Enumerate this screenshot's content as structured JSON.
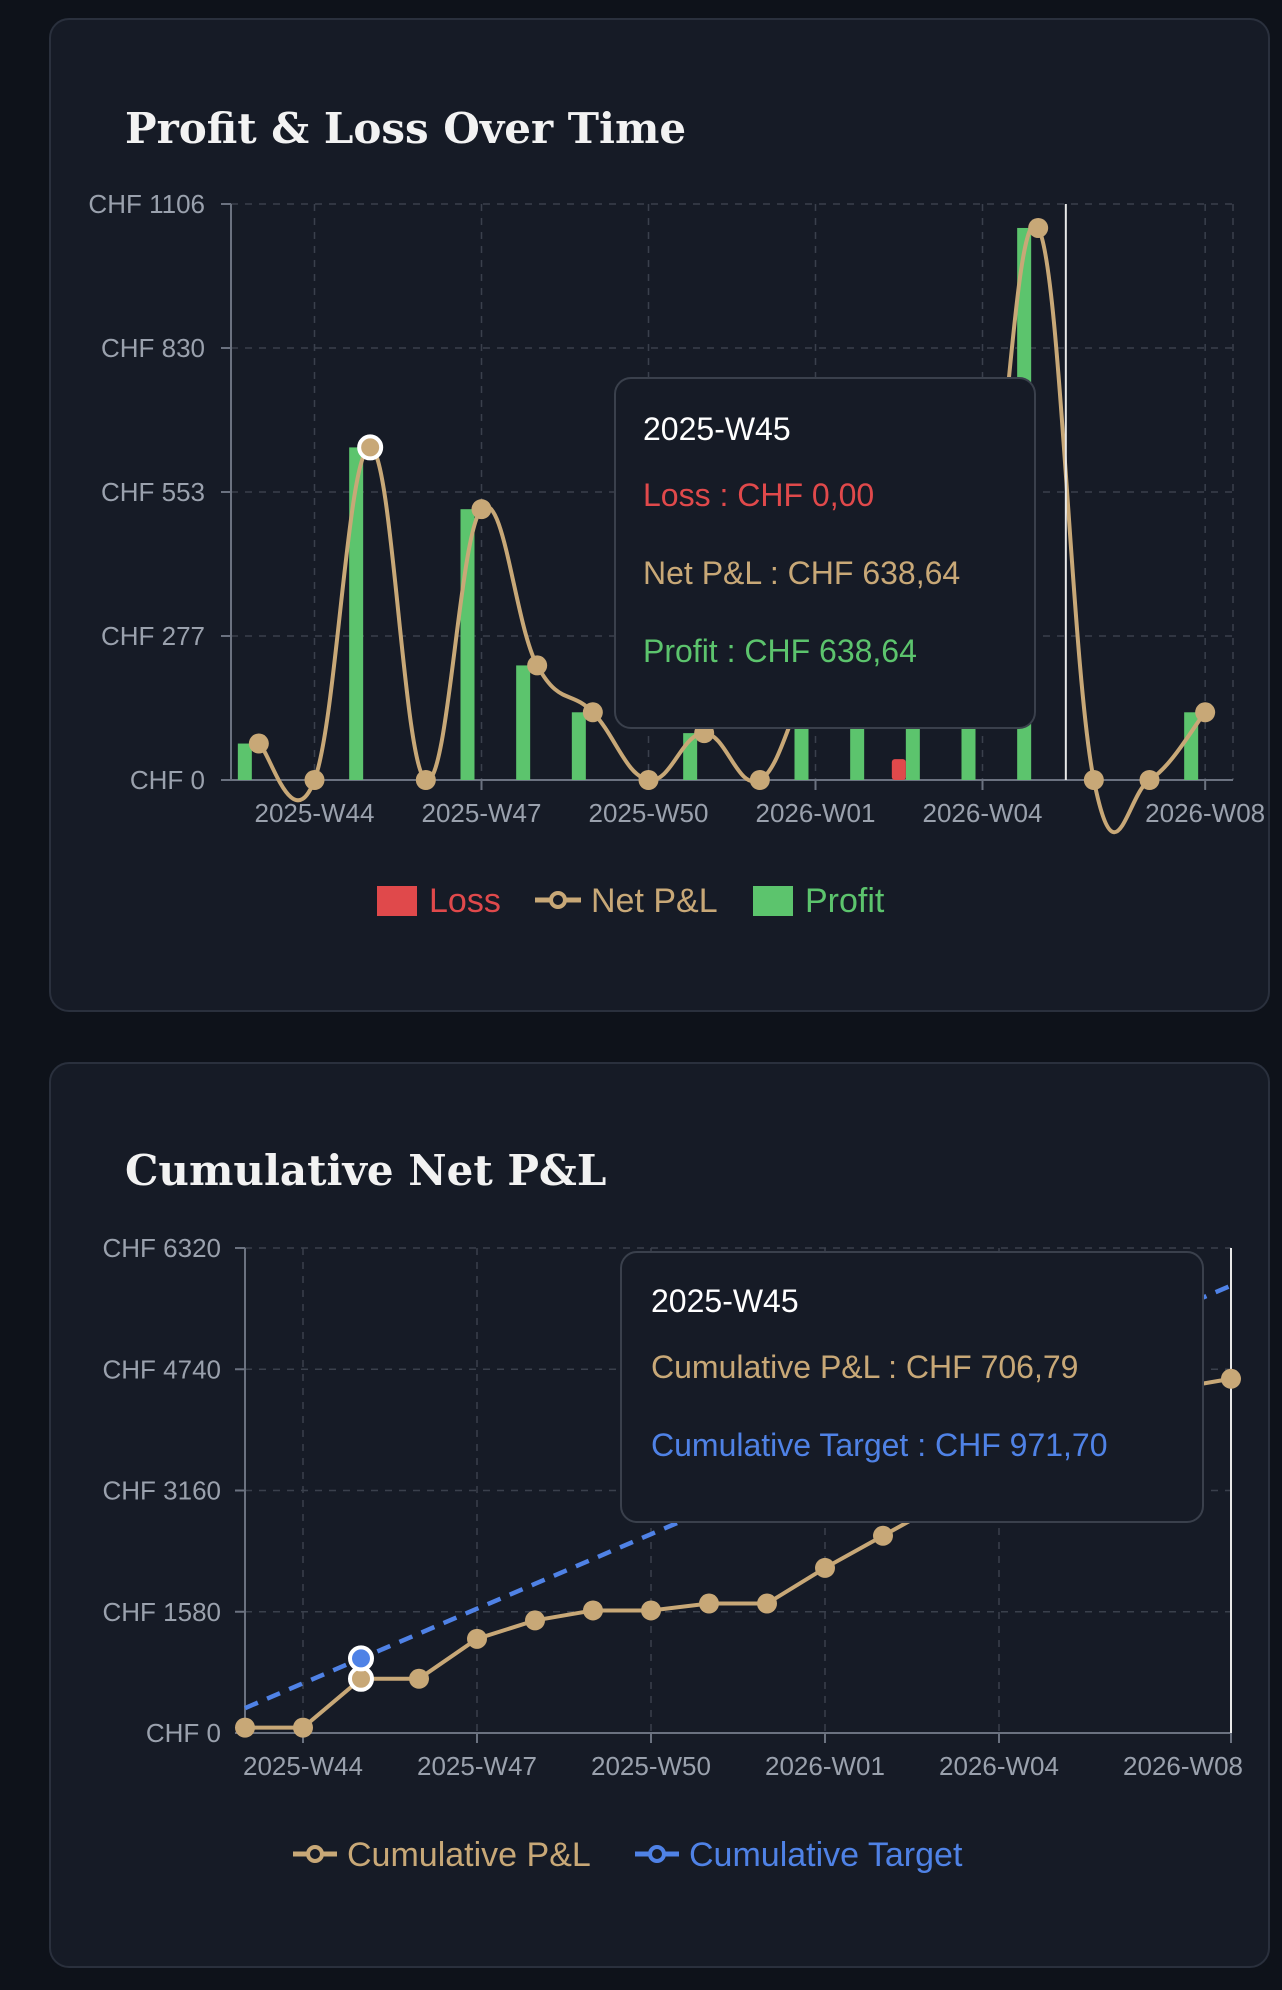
{
  "colors": {
    "loss": "#e0494b",
    "net": "#c8a877",
    "profit": "#5cc46d",
    "target": "#4f82e6"
  },
  "cards": [
    {
      "title": "Profit & Loss Over Time"
    },
    {
      "title": "Cumulative Net P&L"
    }
  ],
  "chart_data": [
    {
      "type": "bar",
      "title": "Profit & Loss Over Time",
      "x": [
        "2025-W43",
        "2025-W44",
        "2025-W45",
        "2025-W46",
        "2025-W47",
        "2025-W48",
        "2025-W49",
        "2025-W50",
        "2025-W51",
        "2025-W52",
        "2026-W01",
        "2026-W02",
        "2026-W03",
        "2026-W04",
        "2026-W05",
        "2026-W06",
        "2026-W07",
        "2026-W08"
      ],
      "xticks": [
        "2025-W44",
        "2025-W47",
        "2025-W50",
        "2026-W01",
        "2026-W04",
        "2026-W08"
      ],
      "yticks": [
        "CHF 0",
        "CHF 277",
        "CHF 553",
        "CHF 830",
        "CHF 1106"
      ],
      "ylim": [
        0,
        1106
      ],
      "series": [
        {
          "name": "Loss",
          "values": [
            0,
            0,
            0,
            0,
            0,
            0,
            0,
            0,
            0,
            0,
            0,
            0,
            -40,
            0,
            0,
            0,
            0,
            0
          ]
        },
        {
          "name": "Net P&L",
          "values": [
            70,
            0,
            638.64,
            0,
            520,
            220,
            130,
            0,
            90,
            0,
            200,
            180,
            140,
            350,
            1060,
            0,
            0,
            130
          ]
        },
        {
          "name": "Profit",
          "values": [
            70,
            0,
            638.64,
            0,
            520,
            220,
            130,
            0,
            90,
            0,
            200,
            180,
            180,
            350,
            1060,
            0,
            0,
            130
          ]
        }
      ],
      "legend": [
        "Loss",
        "Net P&L",
        "Profit"
      ],
      "legend_position": "bottom",
      "grid": true,
      "tooltip": {
        "title": "2025-W45",
        "rows": [
          {
            "label": "Loss : CHF 0,00"
          },
          {
            "label": "Net P&L : CHF 638,64"
          },
          {
            "label": "Profit : CHF 638,64"
          }
        ]
      }
    },
    {
      "type": "line",
      "title": "Cumulative Net P&L",
      "x": [
        "2025-W43",
        "2025-W44",
        "2025-W45",
        "2025-W46",
        "2025-W47",
        "2025-W48",
        "2025-W49",
        "2025-W50",
        "2025-W51",
        "2025-W52",
        "2026-W01",
        "2026-W02",
        "2026-W03",
        "2026-W04",
        "2026-W05",
        "2026-W06",
        "2026-W07",
        "2026-W08"
      ],
      "xticks": [
        "2025-W44",
        "2025-W47",
        "2025-W50",
        "2026-W01",
        "2026-W04",
        "2026-W08"
      ],
      "yticks": [
        "CHF 0",
        "CHF 1580",
        "CHF 3160",
        "CHF 4740",
        "CHF 6320"
      ],
      "ylim": [
        0,
        6320
      ],
      "series": [
        {
          "name": "Cumulative P&L",
          "values": [
            70,
            70,
            706.79,
            706.79,
            1227,
            1467,
            1597,
            1597,
            1687,
            1687,
            2151,
            2570,
            2990,
            3426,
            4486,
            4486,
            4486,
            4616
          ]
        },
        {
          "name": "Cumulative Target",
          "values": [
            323.9,
            647.8,
            971.7,
            1295.6,
            1619.5,
            1943.4,
            2267.3,
            2591.2,
            2915.1,
            3239,
            3562.9,
            3886.8,
            4210.7,
            4534.6,
            4858.5,
            5182.4,
            5506.3,
            5830.2
          ]
        }
      ],
      "legend": [
        "Cumulative P&L",
        "Cumulative Target"
      ],
      "legend_position": "bottom",
      "grid": true,
      "tooltip": {
        "title": "2025-W45",
        "rows": [
          {
            "label": "Cumulative P&L : CHF 706,79"
          },
          {
            "label": "Cumulative Target : CHF 971,70"
          }
        ]
      }
    }
  ]
}
